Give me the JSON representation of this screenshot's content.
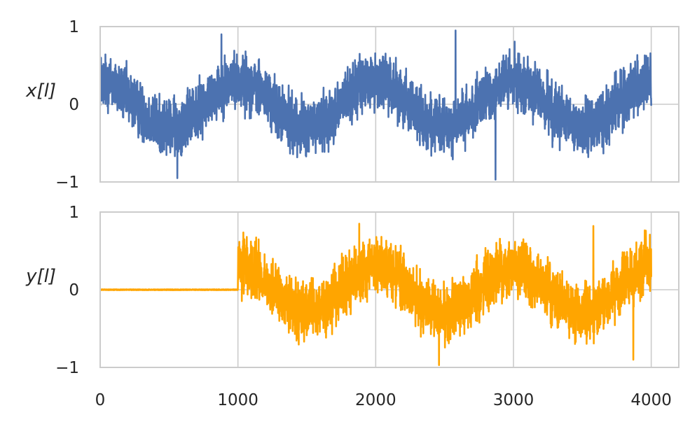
{
  "chart_data": [
    {
      "type": "line",
      "ylabel": "x[l]",
      "xlim": [
        0,
        4200
      ],
      "ylim": [
        -1,
        1
      ],
      "xticks": [
        0,
        1000,
        2000,
        3000,
        4000
      ],
      "yticks": [
        -1,
        0,
        1
      ],
      "ytick_labels": [
        "−1",
        "0",
        "1"
      ],
      "show_xtick_labels": false,
      "grid": true,
      "series": [
        {
          "color": "#4c72b0",
          "n_points": 4000,
          "x_start": 0,
          "x_end": 4000,
          "trend": {
            "period": 1000,
            "amplitude": 0.3,
            "phase_peak_at": 1000
          },
          "noise_amplitude": 0.35,
          "peak_values": [
            {
              "x": 880,
              "y": 0.9
            },
            {
              "x": 2580,
              "y": 0.95
            },
            {
              "x": 560,
              "y": -0.95
            },
            {
              "x": 2870,
              "y": -0.97
            }
          ]
        }
      ]
    },
    {
      "type": "line",
      "ylabel": "y[l]",
      "xlim": [
        0,
        4200
      ],
      "ylim": [
        -1,
        1
      ],
      "xticks": [
        0,
        1000,
        2000,
        3000,
        4000
      ],
      "xtick_labels": [
        "0",
        "1000",
        "2000",
        "3000",
        "4000"
      ],
      "yticks": [
        -1,
        0,
        1
      ],
      "ytick_labels": [
        "−1",
        "0",
        "1"
      ],
      "grid": true,
      "series": [
        {
          "color": "#ffa500",
          "n_points": 4000,
          "x_start": 0,
          "x_end": 4000,
          "silent_until": 1000,
          "silent_value": 0.0,
          "trend": {
            "period": 1000,
            "amplitude": 0.3,
            "phase_peak_at": 2000
          },
          "noise_amplitude": 0.35,
          "peak_values": [
            {
              "x": 1880,
              "y": 0.85
            },
            {
              "x": 3580,
              "y": 0.82
            },
            {
              "x": 2460,
              "y": -0.97
            },
            {
              "x": 3870,
              "y": -0.9
            }
          ]
        }
      ]
    }
  ]
}
